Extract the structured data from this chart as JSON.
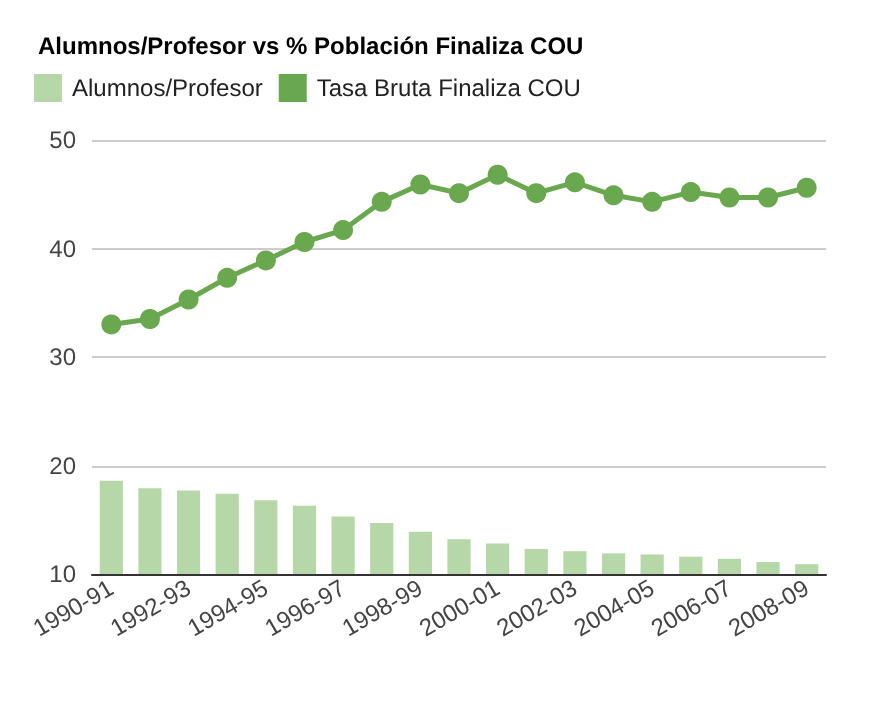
{
  "chart_data": {
    "type": "bar",
    "title": "Alumnos/Profesor vs % Población Finaliza COU",
    "categories": [
      "1990-91",
      null,
      "1992-93",
      null,
      "1994-95",
      null,
      "1996-97",
      null,
      "1998-99",
      null,
      "2000-01",
      null,
      "2002-03",
      null,
      "2004-05",
      null,
      "2006-07",
      null,
      "2008-09"
    ],
    "series": [
      {
        "name": "Alumnos/Profesor",
        "color": "#b6d7a8",
        "values": [
          18.6,
          17.9,
          17.7,
          17.4,
          16.8,
          16.3,
          15.3,
          14.7,
          13.9,
          13.2,
          12.8,
          12.3,
          12.1,
          11.9,
          11.8,
          11.6,
          11.4,
          11.1,
          10.9
        ]
      },
      {
        "name": "Tasa Bruta Finaliza COU",
        "type": "line",
        "color": "#6aa84f",
        "marker": "circle",
        "values": [
          33.0,
          33.5,
          35.3,
          37.3,
          38.9,
          40.6,
          41.7,
          44.3,
          45.9,
          45.1,
          46.8,
          45.1,
          46.1,
          44.9,
          44.3,
          45.2,
          44.7,
          44.7,
          45.6
        ]
      }
    ],
    "ylim": [
      10,
      50
    ],
    "yticks": [
      10,
      20,
      30,
      40,
      50
    ],
    "grid": "y",
    "legend": "top left"
  }
}
